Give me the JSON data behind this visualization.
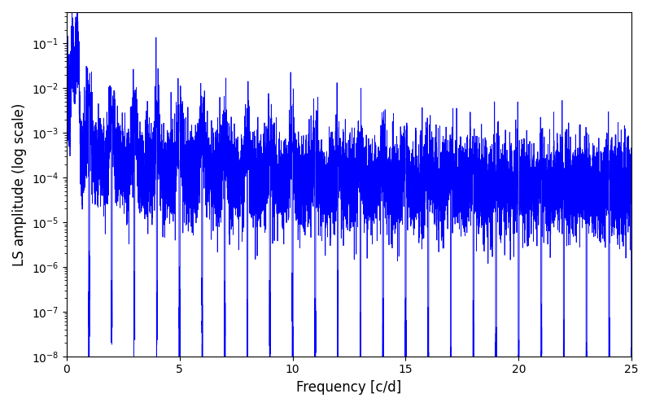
{
  "xlabel": "Frequency [c/d]",
  "ylabel": "LS amplitude (log scale)",
  "line_color": "#0000ff",
  "line_width": 0.6,
  "xlim": [
    0,
    25
  ],
  "ylim": [
    1e-08,
    0.5
  ],
  "background_color": "#ffffff",
  "figsize": [
    8.0,
    5.0
  ],
  "dpi": 100,
  "xlabel_fontsize": 12,
  "ylabel_fontsize": 12,
  "tick_fontsize": 10,
  "freq_max": 25.0,
  "n_points": 10000,
  "seed": 7
}
